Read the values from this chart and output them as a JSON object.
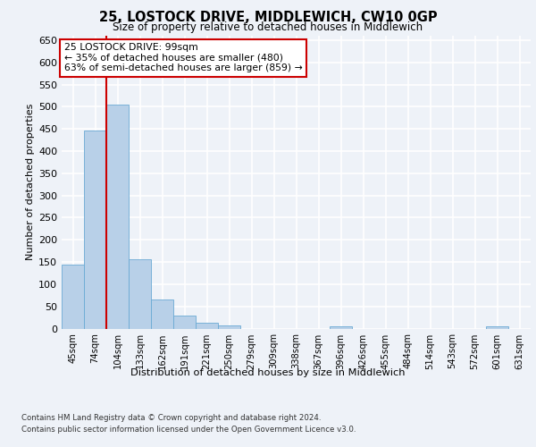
{
  "title": "25, LOSTOCK DRIVE, MIDDLEWICH, CW10 0GP",
  "subtitle": "Size of property relative to detached houses in Middlewich",
  "xlabel": "Distribution of detached houses by size in Middlewich",
  "ylabel": "Number of detached properties",
  "categories": [
    "45sqm",
    "74sqm",
    "104sqm",
    "133sqm",
    "162sqm",
    "191sqm",
    "221sqm",
    "250sqm",
    "279sqm",
    "309sqm",
    "338sqm",
    "367sqm",
    "396sqm",
    "426sqm",
    "455sqm",
    "484sqm",
    "514sqm",
    "543sqm",
    "572sqm",
    "601sqm",
    "631sqm"
  ],
  "values": [
    145,
    447,
    505,
    157,
    66,
    30,
    13,
    8,
    0,
    0,
    0,
    0,
    5,
    0,
    0,
    0,
    0,
    0,
    0,
    5,
    0
  ],
  "bar_color": "#b8d0e8",
  "bar_edge_color": "#6aaad4",
  "highlight_index": 2,
  "highlight_line_color": "#cc0000",
  "annotation_text": "25 LOSTOCK DRIVE: 99sqm\n← 35% of detached houses are smaller (480)\n63% of semi-detached houses are larger (859) →",
  "annotation_box_color": "#ffffff",
  "annotation_box_edge_color": "#cc0000",
  "ylim": [
    0,
    660
  ],
  "yticks": [
    0,
    50,
    100,
    150,
    200,
    250,
    300,
    350,
    400,
    450,
    500,
    550,
    600,
    650
  ],
  "background_color": "#eef2f8",
  "plot_background_color": "#eef2f8",
  "grid_color": "#ffffff",
  "footer_line1": "Contains HM Land Registry data © Crown copyright and database right 2024.",
  "footer_line2": "Contains public sector information licensed under the Open Government Licence v3.0."
}
